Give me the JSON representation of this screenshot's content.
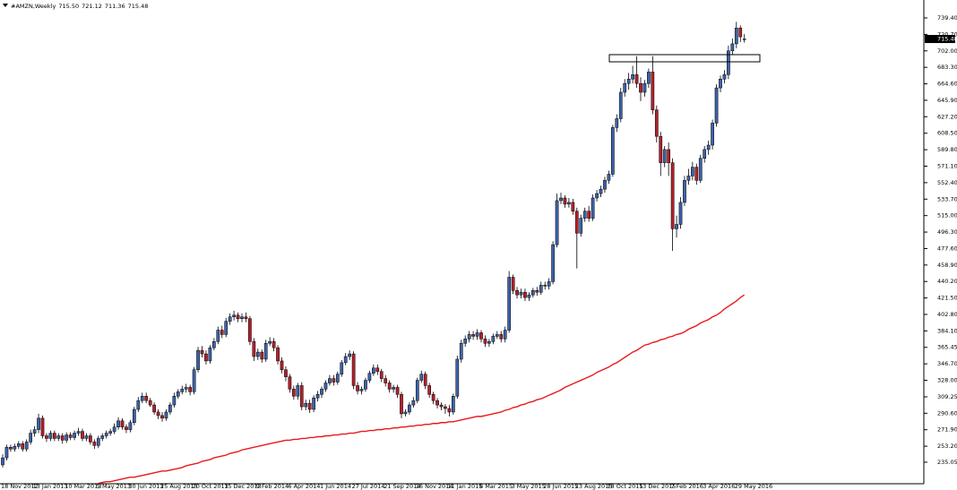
{
  "chart_data": {
    "type": "candlestick",
    "header": "#AMZN,Weekly",
    "header_values": [
      "715.50",
      "721.12",
      "711.36",
      "715.48"
    ],
    "up_color": "#3d62a8",
    "down_color": "#b4202c",
    "ylim": [
      210.6,
      756.7
    ],
    "yticks": [
      235.05,
      {
        "value": 253.2,
        "label": "253.20"
      },
      {
        "value": 271.9,
        "label": "271.90"
      },
      {
        "value": 290.6,
        "label": "290.60"
      },
      309.25,
      {
        "value": 328,
        "label": "328.00"
      },
      {
        "value": 346.7,
        "label": "346.70"
      },
      365.45,
      {
        "value": 384.1,
        "label": "384.10"
      },
      {
        "value": 402.8,
        "label": "402.80"
      },
      {
        "value": 421.5,
        "label": "421.50"
      },
      {
        "value": 440.2,
        "label": "440.20"
      },
      {
        "value": 458.9,
        "label": "458.90"
      },
      {
        "value": 477.6,
        "label": "477.60"
      },
      {
        "value": 496.3,
        "label": "496.30"
      },
      {
        "value": 515,
        "label": "515.00"
      },
      {
        "value": 533.7,
        "label": "533.70"
      },
      {
        "value": 552.4,
        "label": "552.40"
      },
      {
        "value": 571.1,
        "label": "571.10"
      },
      {
        "value": 589.8,
        "label": "589.80"
      },
      {
        "value": 608.5,
        "label": "608.50"
      },
      {
        "value": 627.2,
        "label": "627.20"
      },
      {
        "value": 645.9,
        "label": "645.90"
      },
      {
        "value": 664.6,
        "label": "664.60"
      },
      {
        "value": 683.3,
        "label": "683.30"
      },
      {
        "value": 702,
        "label": "702.00"
      },
      {
        "value": 720.7,
        "label": "720.70"
      },
      {
        "value": 739.4,
        "label": "739.40"
      }
    ],
    "categories": [
      "18 Nov 2012",
      null,
      null,
      null,
      null,
      null,
      null,
      null,
      "13 Jan 2013",
      null,
      null,
      null,
      null,
      null,
      null,
      null,
      "10 Mar 2013",
      null,
      null,
      null,
      null,
      null,
      null,
      null,
      "5 May 2013",
      null,
      null,
      null,
      null,
      null,
      null,
      null,
      "30 Jun 2013",
      null,
      null,
      null,
      null,
      null,
      null,
      null,
      "25 Aug 2013",
      null,
      null,
      null,
      null,
      null,
      null,
      null,
      "20 Oct 2013",
      null,
      null,
      null,
      null,
      null,
      null,
      null,
      "15 Dec 2013",
      null,
      null,
      null,
      null,
      null,
      null,
      null,
      "9 Feb 2014",
      null,
      null,
      null,
      null,
      null,
      null,
      null,
      "6 Apr 2014",
      null,
      null,
      null,
      null,
      null,
      null,
      null,
      "1 Jun 2014",
      null,
      null,
      null,
      null,
      null,
      null,
      null,
      "27 Jul 2014",
      null,
      null,
      null,
      null,
      null,
      null,
      null,
      "21 Sep 2014",
      null,
      null,
      null,
      null,
      null,
      null,
      null,
      "16 Nov 2014",
      null,
      null,
      null,
      null,
      null,
      null,
      null,
      "11 Jan 2015",
      null,
      null,
      null,
      null,
      null,
      null,
      null,
      "8 Mar 2015",
      null,
      null,
      null,
      null,
      null,
      null,
      null,
      "3 May 2015",
      null,
      null,
      null,
      null,
      null,
      null,
      null,
      "28 Jun 2015",
      null,
      null,
      null,
      null,
      null,
      null,
      null,
      "23 Aug 2015",
      null,
      null,
      null,
      null,
      null,
      null,
      null,
      "18 Oct 2015",
      null,
      null,
      null,
      null,
      null,
      null,
      null,
      "13 Dec 2015",
      null,
      null,
      null,
      null,
      null,
      null,
      null,
      "7 Feb 2016",
      null,
      null,
      null,
      null,
      null,
      null,
      null,
      "3 Apr 2016",
      null,
      null,
      null,
      null,
      null,
      null,
      null,
      "29 May 2016",
      null,
      null
    ],
    "open": [
      232,
      240,
      252,
      250,
      253,
      256,
      250,
      258,
      268,
      272,
      285,
      265,
      262,
      268,
      262,
      265,
      260,
      266,
      263,
      268,
      270,
      262,
      265,
      258,
      254,
      262,
      265,
      268,
      270,
      275,
      282,
      275,
      272,
      280,
      295,
      305,
      310,
      305,
      300,
      292,
      288,
      285,
      292,
      300,
      310,
      315,
      318,
      320,
      315,
      340,
      362,
      358,
      350,
      365,
      372,
      385,
      380,
      395,
      400,
      402,
      398,
      400,
      398,
      372,
      355,
      360,
      352,
      370,
      372,
      365,
      350,
      340,
      332,
      318,
      310,
      322,
      298,
      302,
      295,
      308,
      312,
      318,
      325,
      330,
      326,
      335,
      348,
      355,
      358,
      322,
      316,
      318,
      328,
      336,
      342,
      338,
      330,
      325,
      318,
      320,
      312,
      290,
      292,
      300,
      305,
      328,
      335,
      322,
      312,
      305,
      300,
      298,
      296,
      292,
      310,
      352,
      370,
      375,
      380,
      378,
      382,
      375,
      370,
      372,
      378,
      380,
      375,
      385,
      445,
      430,
      425,
      428,
      422,
      425,
      430,
      428,
      436,
      435,
      440,
      482,
      532,
      535,
      528,
      530,
      520,
      495,
      512,
      520,
      512,
      535,
      540,
      545,
      555,
      562,
      615,
      625,
      655,
      665,
      670,
      675,
      665,
      655,
      665,
      678,
      635,
      605,
      575,
      590,
      575,
      500,
      505,
      530,
      555,
      560,
      570,
      555,
      580,
      590,
      595,
      620,
      660,
      670,
      675,
      702,
      710,
      728,
      715.5
    ],
    "high": [
      244,
      255,
      255,
      256,
      259,
      259,
      261,
      272,
      276,
      290,
      288,
      268,
      271,
      271,
      268,
      268,
      269,
      269,
      271,
      274,
      273,
      268,
      268,
      261,
      265,
      268,
      271,
      273,
      279,
      286,
      285,
      278,
      283,
      298,
      309,
      314,
      314,
      308,
      303,
      295,
      292,
      295,
      303,
      314,
      318,
      322,
      324,
      323,
      343,
      366,
      367,
      362,
      368,
      376,
      389,
      390,
      399,
      404,
      407,
      405,
      404,
      405,
      401,
      376,
      364,
      363,
      374,
      377,
      376,
      368,
      354,
      344,
      335,
      322,
      325,
      326,
      306,
      306,
      311,
      316,
      321,
      328,
      334,
      334,
      338,
      351,
      359,
      362,
      361,
      326,
      321,
      331,
      339,
      346,
      346,
      341,
      334,
      328,
      323,
      323,
      315,
      295,
      303,
      309,
      331,
      339,
      338,
      325,
      315,
      308,
      303,
      301,
      300,
      313,
      356,
      374,
      379,
      384,
      384,
      386,
      385,
      379,
      375,
      381,
      384,
      384,
      389,
      452,
      448,
      434,
      432,
      432,
      428,
      433,
      434,
      440,
      440,
      444,
      486,
      540,
      541,
      538,
      535,
      534,
      524,
      516,
      524,
      526,
      539,
      544,
      549,
      559,
      566,
      618,
      630,
      660,
      670,
      677,
      685,
      696,
      672,
      669,
      682,
      696,
      640,
      610,
      594,
      598,
      580,
      515,
      536,
      560,
      568,
      576,
      574,
      584,
      594,
      600,
      624,
      664,
      674,
      680,
      708,
      716,
      735,
      731,
      721.12
    ],
    "low": [
      229,
      237,
      247,
      247,
      250,
      247,
      247,
      255,
      264,
      268,
      262,
      258,
      259,
      259,
      259,
      256,
      257,
      260,
      260,
      265,
      259,
      259,
      255,
      250,
      251,
      259,
      262,
      265,
      267,
      272,
      272,
      268,
      269,
      277,
      292,
      302,
      302,
      298,
      289,
      284,
      281,
      282,
      289,
      297,
      307,
      312,
      314,
      311,
      312,
      337,
      354,
      346,
      347,
      362,
      369,
      376,
      377,
      391,
      396,
      394,
      394,
      394,
      368,
      350,
      351,
      348,
      349,
      367,
      361,
      346,
      336,
      327,
      314,
      306,
      306,
      294,
      294,
      291,
      292,
      304,
      308,
      315,
      322,
      322,
      323,
      332,
      345,
      351,
      318,
      312,
      312,
      315,
      325,
      333,
      334,
      326,
      321,
      314,
      314,
      308,
      285,
      287,
      289,
      297,
      302,
      325,
      318,
      308,
      301,
      296,
      294,
      290,
      287,
      289,
      307,
      348,
      366,
      371,
      374,
      374,
      371,
      366,
      366,
      369,
      375,
      371,
      371,
      382,
      426,
      421,
      421,
      418,
      418,
      422,
      424,
      425,
      431,
      431,
      437,
      479,
      528,
      524,
      524,
      516,
      455,
      491,
      508,
      508,
      509,
      531,
      536,
      541,
      551,
      559,
      610,
      621,
      650,
      658,
      665,
      660,
      645,
      650,
      660,
      630,
      598,
      560,
      570,
      560,
      475,
      490,
      500,
      526,
      550,
      555,
      550,
      552,
      575,
      584,
      590,
      616,
      655,
      665,
      670,
      698,
      705,
      712,
      711.36
    ],
    "close": [
      240,
      252,
      250,
      253,
      256,
      250,
      258,
      268,
      272,
      285,
      265,
      262,
      268,
      262,
      265,
      260,
      266,
      263,
      268,
      270,
      262,
      265,
      258,
      254,
      262,
      265,
      268,
      270,
      275,
      282,
      275,
      272,
      280,
      295,
      305,
      310,
      305,
      300,
      292,
      288,
      285,
      292,
      300,
      310,
      315,
      318,
      320,
      315,
      340,
      362,
      358,
      350,
      365,
      372,
      385,
      380,
      395,
      400,
      402,
      398,
      400,
      398,
      372,
      355,
      360,
      352,
      370,
      372,
      365,
      350,
      340,
      332,
      318,
      310,
      322,
      298,
      302,
      295,
      308,
      312,
      318,
      325,
      330,
      326,
      335,
      348,
      355,
      358,
      322,
      316,
      318,
      328,
      336,
      342,
      338,
      330,
      325,
      318,
      320,
      312,
      290,
      292,
      300,
      305,
      328,
      335,
      322,
      312,
      305,
      300,
      298,
      296,
      292,
      310,
      352,
      370,
      375,
      380,
      378,
      382,
      375,
      370,
      372,
      378,
      380,
      375,
      385,
      445,
      430,
      425,
      428,
      422,
      425,
      430,
      428,
      436,
      435,
      440,
      482,
      532,
      535,
      528,
      530,
      520,
      495,
      512,
      520,
      512,
      535,
      540,
      545,
      555,
      562,
      615,
      625,
      655,
      665,
      670,
      675,
      665,
      655,
      665,
      678,
      635,
      605,
      575,
      590,
      575,
      500,
      505,
      530,
      555,
      560,
      570,
      555,
      580,
      590,
      595,
      620,
      660,
      670,
      675,
      702,
      710,
      728,
      718,
      715.48
    ],
    "ma": {
      "color": "#e8191c",
      "values": [
        null,
        null,
        null,
        null,
        null,
        null,
        null,
        null,
        null,
        null,
        null,
        null,
        null,
        null,
        null,
        null,
        null,
        null,
        null,
        null,
        null,
        null,
        null,
        null,
        211,
        212,
        213,
        213,
        214,
        215,
        216,
        217,
        218,
        218,
        219,
        220,
        221,
        222,
        223,
        224,
        225,
        225,
        226,
        227,
        228,
        229,
        231,
        232,
        233,
        234,
        236,
        237,
        238,
        240,
        241,
        242,
        243,
        245,
        246,
        247,
        249,
        250,
        251,
        252,
        253,
        254,
        255,
        256,
        257,
        258,
        259,
        260,
        260,
        261,
        261,
        262,
        262,
        263,
        263,
        264,
        264,
        265,
        265,
        266,
        266,
        267,
        267,
        268,
        268,
        269,
        270,
        270,
        271,
        271,
        272,
        272,
        273,
        273,
        274,
        274,
        275,
        275,
        276,
        276,
        277,
        277,
        278,
        278,
        279,
        279,
        280,
        280,
        281,
        281,
        282,
        283,
        284,
        285,
        286,
        287,
        287,
        288,
        289,
        290,
        291,
        292,
        294,
        295,
        297,
        298,
        300,
        301,
        303,
        304,
        306,
        307,
        309,
        311,
        313,
        315,
        317,
        320,
        322,
        324,
        326,
        328,
        330,
        332,
        334,
        337,
        339,
        341,
        343,
        346,
        348,
        351,
        354,
        357,
        360,
        362,
        365,
        368,
        369,
        371,
        372,
        374,
        375,
        377,
        378,
        380,
        381,
        383,
        386,
        388,
        390,
        393,
        395,
        397,
        400,
        402,
        405,
        409,
        412,
        415,
        418,
        422,
        425
      ]
    }
  }
}
